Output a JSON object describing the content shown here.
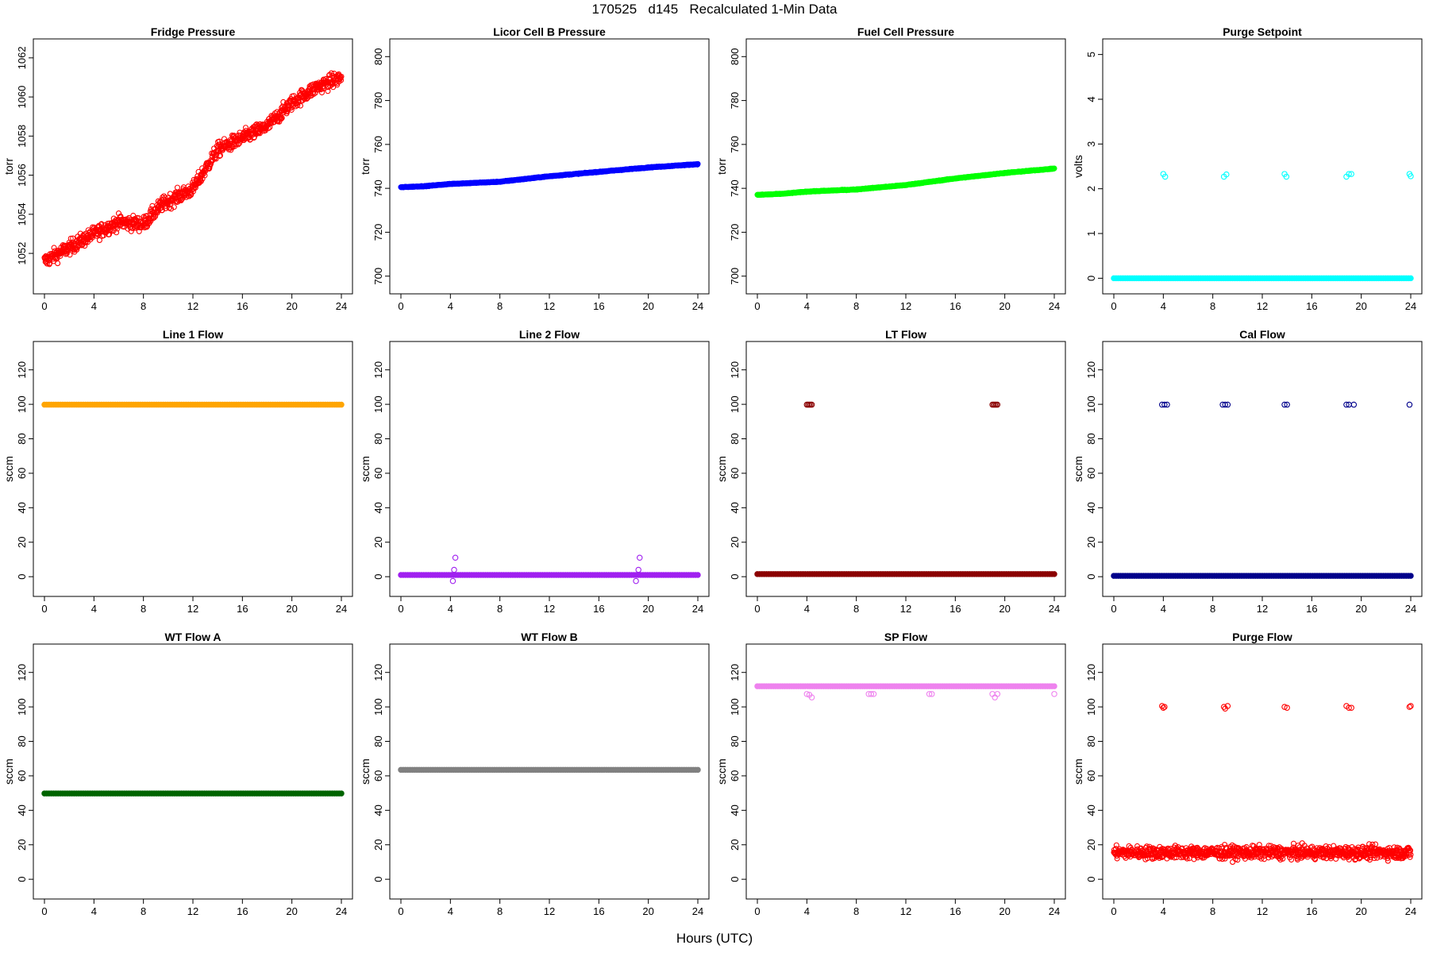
{
  "figure": {
    "title": "170525   d145   Recalculated 1-Min Data",
    "xlabel": "Hours (UTC)"
  },
  "chart_data": [
    {
      "type": "scatter",
      "title": "Fridge Pressure",
      "ylabel": "torr",
      "color": "#ff0000",
      "xlim": [
        0,
        24
      ],
      "ylim": [
        1050.5,
        1062.4
      ],
      "xticks": [
        0,
        4,
        8,
        12,
        16,
        20,
        24
      ],
      "yticks": [
        1052,
        1054,
        1056,
        1058,
        1060,
        1062
      ],
      "series": [
        {
          "pattern": "trend",
          "x": [
            0,
            2,
            4,
            6,
            8,
            9.5,
            12,
            14,
            16,
            18,
            20,
            22,
            24
          ],
          "y": [
            1051.6,
            1052.3,
            1053.0,
            1053.6,
            1053.5,
            1054.5,
            1055.3,
            1057.3,
            1057.9,
            1058.5,
            1059.7,
            1060.5,
            1061.0
          ],
          "noise": 0.35
        }
      ]
    },
    {
      "type": "scatter",
      "title": "Licor Cell B Pressure",
      "ylabel": "torr",
      "color": "#0000ff",
      "xlim": [
        0,
        24
      ],
      "ylim": [
        697,
        803
      ],
      "xticks": [
        0,
        4,
        8,
        12,
        16,
        20,
        24
      ],
      "yticks": [
        700,
        720,
        740,
        760,
        780,
        800
      ],
      "series": [
        {
          "pattern": "trend",
          "x": [
            0,
            2,
            4,
            8,
            12,
            16,
            20,
            24
          ],
          "y": [
            740.5,
            741,
            742,
            743,
            745.5,
            747.5,
            749.5,
            751
          ],
          "noise": 0.15
        }
      ]
    },
    {
      "type": "scatter",
      "title": "Fuel Cell Pressure",
      "ylabel": "torr",
      "color": "#00ff00",
      "xlim": [
        0,
        24
      ],
      "ylim": [
        697,
        803
      ],
      "xticks": [
        0,
        4,
        8,
        12,
        16,
        20,
        24
      ],
      "yticks": [
        700,
        720,
        740,
        760,
        780,
        800
      ],
      "series": [
        {
          "pattern": "trend",
          "x": [
            0,
            2,
            4,
            8,
            12,
            16,
            20,
            24
          ],
          "y": [
            737,
            737.5,
            738.5,
            739.5,
            741.5,
            744.5,
            747,
            749
          ],
          "noise": 0.15
        }
      ]
    },
    {
      "type": "scatter",
      "title": "Purge Setpoint",
      "ylabel": "volts",
      "color": "#00ffff",
      "xlim": [
        0,
        24
      ],
      "ylim": [
        -0.1,
        5.1
      ],
      "xticks": [
        0,
        4,
        8,
        12,
        16,
        20,
        24
      ],
      "yticks": [
        0,
        1,
        2,
        3,
        4,
        5
      ],
      "series": [
        {
          "pattern": "const",
          "y": 0
        },
        {
          "pattern": "points",
          "x": [
            4.0,
            4.15,
            8.9,
            9.1,
            13.8,
            13.95,
            18.8,
            19.0,
            19.2,
            23.9,
            24.0
          ],
          "y": [
            2.33,
            2.27,
            2.27,
            2.32,
            2.33,
            2.27,
            2.27,
            2.33,
            2.33,
            2.33,
            2.28
          ]
        }
      ]
    },
    {
      "type": "scatter",
      "title": "Line 1 Flow",
      "ylabel": "sccm",
      "color": "#ffa500",
      "xlim": [
        0,
        24
      ],
      "ylim": [
        -5,
        130
      ],
      "xticks": [
        0,
        4,
        8,
        12,
        16,
        20,
        24
      ],
      "yticks": [
        0,
        20,
        40,
        60,
        80,
        100,
        120
      ],
      "series": [
        {
          "pattern": "const",
          "y": 99.8
        }
      ]
    },
    {
      "type": "scatter",
      "title": "Line 2 Flow",
      "ylabel": "sccm",
      "color": "#a020f0",
      "xlim": [
        0,
        24
      ],
      "ylim": [
        -5,
        130
      ],
      "xticks": [
        0,
        4,
        8,
        12,
        16,
        20,
        24
      ],
      "yticks": [
        0,
        20,
        40,
        60,
        80,
        100,
        120
      ],
      "series": [
        {
          "pattern": "const",
          "y": 1.0
        },
        {
          "pattern": "points",
          "x": [
            4.2,
            4.3,
            4.4,
            19.0,
            19.2,
            19.3
          ],
          "y": [
            -2.5,
            4.0,
            11.0,
            -2.5,
            4.0,
            11.0
          ]
        }
      ]
    },
    {
      "type": "scatter",
      "title": "LT Flow",
      "ylabel": "sccm",
      "color": "#8b0000",
      "xlim": [
        0,
        24
      ],
      "ylim": [
        -5,
        130
      ],
      "xticks": [
        0,
        4,
        8,
        12,
        16,
        20,
        24
      ],
      "yticks": [
        0,
        20,
        40,
        60,
        80,
        100,
        120
      ],
      "series": [
        {
          "pattern": "const",
          "y": 1.5
        },
        {
          "pattern": "points",
          "x": [
            4.0,
            4.1,
            4.2,
            4.3,
            4.4,
            19.0,
            19.1,
            19.2,
            19.3,
            19.4
          ],
          "y": [
            99.8,
            99.8,
            99.8,
            99.8,
            99.8,
            99.8,
            99.8,
            99.8,
            99.8,
            99.8
          ]
        }
      ]
    },
    {
      "type": "scatter",
      "title": "Cal Flow",
      "ylabel": "sccm",
      "color": "#00008b",
      "xlim": [
        0,
        24
      ],
      "ylim": [
        -5,
        130
      ],
      "xticks": [
        0,
        4,
        8,
        12,
        16,
        20,
        24
      ],
      "yticks": [
        0,
        20,
        40,
        60,
        80,
        100,
        120
      ],
      "series": [
        {
          "pattern": "const",
          "y": 0.5
        },
        {
          "pattern": "points",
          "x": [
            3.9,
            4.1,
            4.3,
            8.8,
            9.0,
            9.2,
            13.8,
            14.0,
            18.8,
            19.0,
            19.4,
            23.9
          ],
          "y": [
            99.8,
            99.8,
            99.8,
            99.8,
            99.8,
            99.8,
            99.8,
            99.8,
            99.8,
            99.8,
            99.8,
            99.8
          ]
        }
      ]
    },
    {
      "type": "scatter",
      "title": "WT Flow A",
      "ylabel": "sccm",
      "color": "#006400",
      "xlim": [
        0,
        24
      ],
      "ylim": [
        -5,
        130
      ],
      "xticks": [
        0,
        4,
        8,
        12,
        16,
        20,
        24
      ],
      "yticks": [
        0,
        20,
        40,
        60,
        80,
        100,
        120
      ],
      "series": [
        {
          "pattern": "const",
          "y": 49.8
        }
      ]
    },
    {
      "type": "scatter",
      "title": "WT Flow B",
      "ylabel": "sccm",
      "color": "#808080",
      "xlim": [
        0,
        24
      ],
      "ylim": [
        -5,
        130
      ],
      "xticks": [
        0,
        4,
        8,
        12,
        16,
        20,
        24
      ],
      "yticks": [
        0,
        20,
        40,
        60,
        80,
        100,
        120
      ],
      "series": [
        {
          "pattern": "const",
          "y": 63.5
        }
      ]
    },
    {
      "type": "scatter",
      "title": "SP Flow",
      "ylabel": "sccm",
      "color": "#ee82ee",
      "xlim": [
        0,
        24
      ],
      "ylim": [
        -5,
        130
      ],
      "xticks": [
        0,
        4,
        8,
        12,
        16,
        20,
        24
      ],
      "yticks": [
        0,
        20,
        40,
        60,
        80,
        100,
        120
      ],
      "series": [
        {
          "pattern": "const",
          "y": 112
        },
        {
          "pattern": "points",
          "x": [
            4.0,
            4.2,
            4.4,
            9.0,
            9.2,
            9.4,
            13.9,
            14.1,
            19.0,
            19.2,
            19.4,
            24.0
          ],
          "y": [
            107.5,
            107,
            105.5,
            107.5,
            107.5,
            107.5,
            107.5,
            107.5,
            107.5,
            105.5,
            107.5,
            107.5
          ]
        }
      ]
    },
    {
      "type": "scatter",
      "title": "Purge Flow",
      "ylabel": "sccm",
      "color": "#ff0000",
      "xlim": [
        0,
        24
      ],
      "ylim": [
        -5,
        130
      ],
      "xticks": [
        0,
        4,
        8,
        12,
        16,
        20,
        24
      ],
      "yticks": [
        0,
        20,
        40,
        60,
        80,
        100,
        120
      ],
      "series": [
        {
          "pattern": "trend",
          "x": [
            0,
            24
          ],
          "y": [
            15.5,
            15.5
          ],
          "noise": 3.5
        },
        {
          "pattern": "points",
          "x": [
            3.9,
            4.0,
            4.1,
            8.9,
            9.0,
            9.2,
            13.8,
            14.0,
            18.8,
            19.0,
            19.2,
            23.9,
            24.0
          ],
          "y": [
            100.5,
            99.5,
            100,
            100,
            99,
            100.5,
            100,
            99.5,
            100.5,
            99.5,
            99.5,
            100,
            100.5
          ]
        }
      ]
    }
  ]
}
